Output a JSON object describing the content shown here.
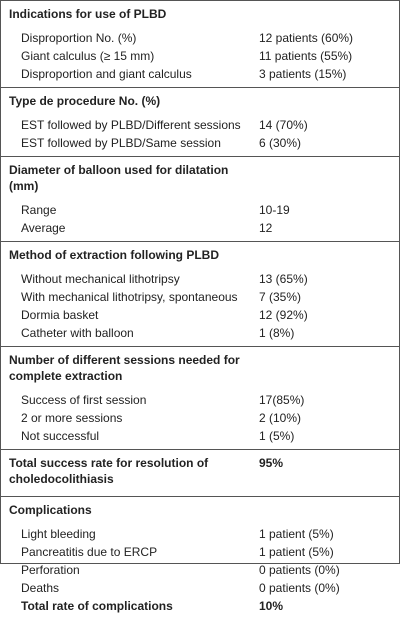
{
  "sections": [
    {
      "heading": "Indications for use of PLBD",
      "rows": [
        [
          "Disproportion No. (%)",
          "12 patients (60%)"
        ],
        [
          "Giant calculus (≥ 15 mm)",
          "11 patients (55%)"
        ],
        [
          "Disproportion and giant calculus",
          "3 patients (15%)"
        ]
      ]
    },
    {
      "heading": "Type de procedure No. (%)",
      "rows": [
        [
          "EST followed by PLBD/Different sessions",
          "14 (70%)"
        ],
        [
          "EST followed by PLBD/Same session",
          "6 (30%)"
        ]
      ]
    },
    {
      "heading": "Diameter of balloon used for dilatation (mm)",
      "rows": [
        [
          "Range",
          "10-19"
        ],
        [
          "Average",
          "12"
        ]
      ]
    },
    {
      "heading": "Method of extraction following PLBD",
      "rows": [
        [
          "Without mechanical lithotripsy",
          "13 (65%)"
        ],
        [
          "With mechanical lithotripsy, spontaneous",
          "7 (35%)"
        ],
        [
          "Dormia basket",
          "12 (92%)"
        ],
        [
          "Catheter with balloon",
          "1 (8%)"
        ]
      ]
    },
    {
      "heading": "Number of different sessions needed for complete extraction",
      "rows": [
        [
          "Success of first session",
          "17(85%)"
        ],
        [
          "2 or more sessions",
          "2 (10%)"
        ],
        [
          "Not successful",
          "1 (5%)"
        ]
      ]
    },
    {
      "heading": "Total success rate for resolution of choledocolithiasis",
      "value": "95%"
    },
    {
      "heading": "Complications",
      "rows": [
        [
          "Light bleeding",
          "1 patient (5%)"
        ],
        [
          "Pancreatitis due to ERCP",
          "1 patient (5%)"
        ],
        [
          "Perforation",
          "0 patients (0%)"
        ],
        [
          "Deaths",
          "0 patients (0%)"
        ]
      ],
      "total": [
        "Total rate of complications",
        "10%"
      ]
    }
  ]
}
